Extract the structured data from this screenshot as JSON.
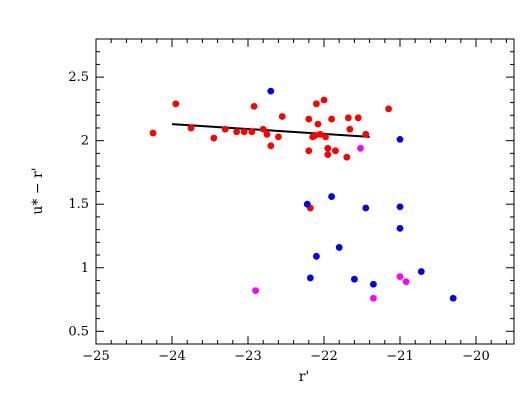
{
  "chart_data": {
    "type": "scatter",
    "title": "",
    "xlabel": "r'",
    "ylabel": "u* − r'",
    "xlim": [
      -25,
      -19.5
    ],
    "ylim": [
      0.4,
      2.8
    ],
    "xticks": [
      "−25",
      "−24",
      "−23",
      "−22",
      "−21",
      "−20"
    ],
    "yticks": [
      "0.5",
      "1",
      "1.5",
      "2",
      "2.5"
    ],
    "xtick_values": [
      -25,
      -24,
      -23,
      -22,
      -21,
      -20
    ],
    "ytick_values": [
      0.5,
      1.0,
      1.5,
      2.0,
      2.5
    ],
    "grid": false,
    "series": [
      {
        "color": "#ff0000",
        "points": [
          [
            -24.25,
            2.06
          ],
          [
            -23.95,
            2.29
          ],
          [
            -23.75,
            2.1
          ],
          [
            -23.45,
            2.02
          ],
          [
            -23.3,
            2.09
          ],
          [
            -23.15,
            2.07
          ],
          [
            -23.05,
            2.07
          ],
          [
            -22.95,
            2.07
          ],
          [
            -22.92,
            2.27
          ],
          [
            -22.8,
            2.09
          ],
          [
            -22.75,
            2.05
          ],
          [
            -22.7,
            1.96
          ],
          [
            -22.6,
            2.03
          ],
          [
            -22.55,
            2.19
          ],
          [
            -22.2,
            2.17
          ],
          [
            -22.2,
            1.92
          ],
          [
            -22.18,
            1.47
          ],
          [
            -22.15,
            2.03
          ],
          [
            -22.12,
            2.04
          ],
          [
            -22.1,
            2.29
          ],
          [
            -22.08,
            2.13
          ],
          [
            -22.05,
            2.05
          ],
          [
            -22.0,
            2.32
          ],
          [
            -21.98,
            2.03
          ],
          [
            -21.95,
            1.94
          ],
          [
            -21.95,
            1.89
          ],
          [
            -21.9,
            2.17
          ],
          [
            -21.85,
            1.92
          ],
          [
            -21.7,
            1.87
          ],
          [
            -21.68,
            2.18
          ],
          [
            -21.66,
            2.09
          ],
          [
            -21.55,
            2.18
          ],
          [
            -21.45,
            2.05
          ],
          [
            -21.15,
            2.25
          ]
        ]
      },
      {
        "color": "#0000ee",
        "points": [
          [
            -22.7,
            2.39
          ],
          [
            -22.22,
            1.5
          ],
          [
            -22.18,
            0.92
          ],
          [
            -22.1,
            1.09
          ],
          [
            -21.9,
            1.56
          ],
          [
            -21.8,
            1.16
          ],
          [
            -21.6,
            0.91
          ],
          [
            -21.45,
            1.47
          ],
          [
            -21.35,
            0.87
          ],
          [
            -21.0,
            2.01
          ],
          [
            -21.0,
            1.48
          ],
          [
            -21.0,
            1.31
          ],
          [
            -20.72,
            0.97
          ],
          [
            -20.3,
            0.76
          ]
        ]
      },
      {
        "color": "#ff00ff",
        "points": [
          [
            -22.9,
            0.82
          ],
          [
            -21.52,
            1.94
          ],
          [
            -21.35,
            0.76
          ],
          [
            -21.0,
            0.93
          ],
          [
            -20.92,
            0.89
          ]
        ]
      }
    ],
    "fit_line": {
      "color": "#000000",
      "points": [
        [
          -24.0,
          2.13
        ],
        [
          -21.4,
          2.03
        ]
      ]
    }
  }
}
